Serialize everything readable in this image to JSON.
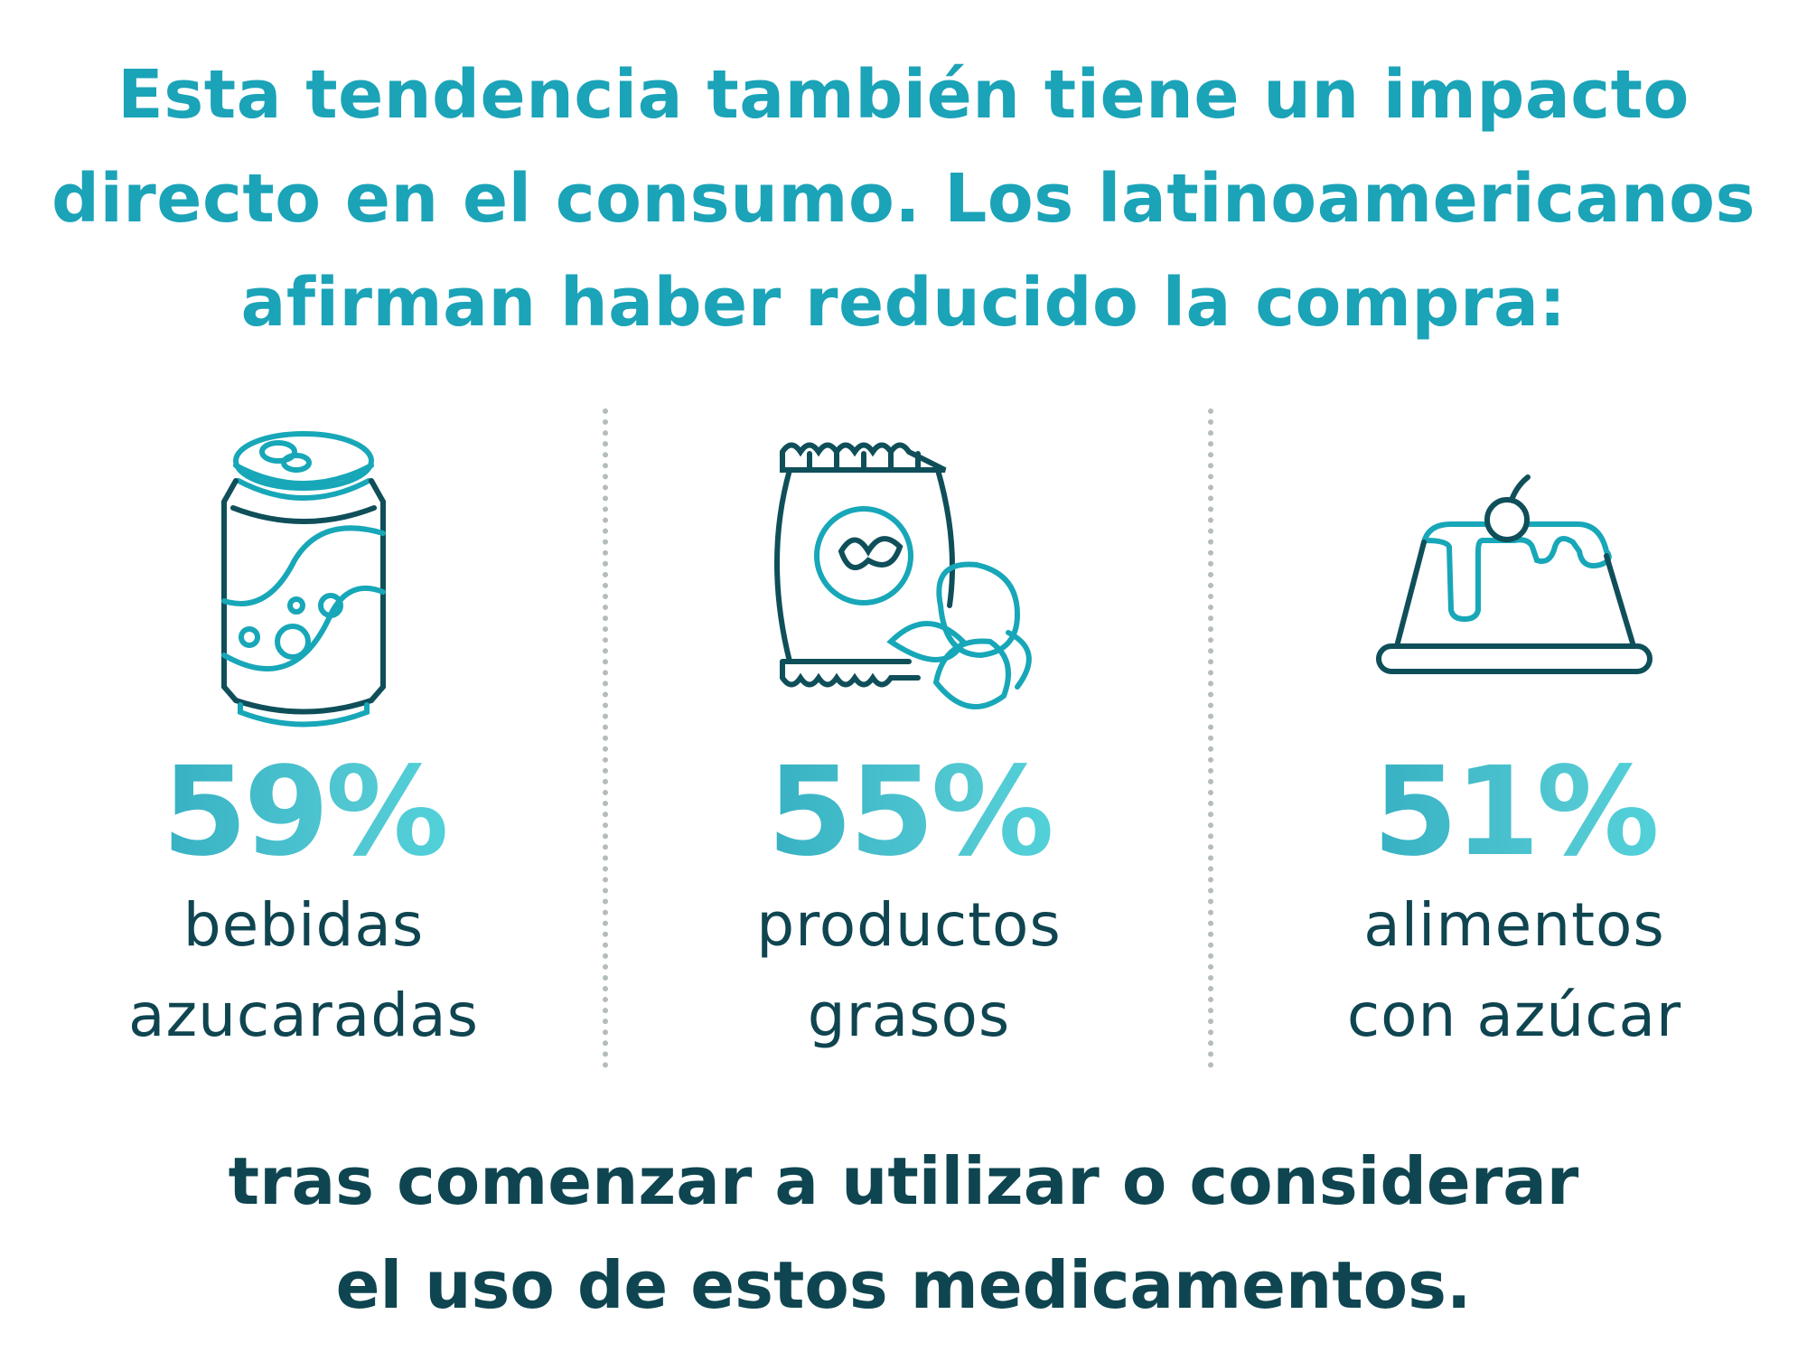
{
  "title": {
    "lines": [
      "Esta tendencia también tiene un impacto",
      "directo en el consumo. Los latinoamericanos",
      "afirman haber reducido la compra:"
    ]
  },
  "stats": [
    {
      "value": "59%",
      "label_lines": [
        "bebidas",
        "azucaradas"
      ],
      "icon": "soda-can-icon"
    },
    {
      "value": "55%",
      "label_lines": [
        "productos",
        "grasos"
      ],
      "icon": "chips-bag-icon"
    },
    {
      "value": "51%",
      "label_lines": [
        "alimentos",
        "con azúcar"
      ],
      "icon": "pudding-cake-icon"
    }
  ],
  "footer": {
    "lines": [
      "tras comenzar a utilizar o considerar",
      "el uso de estos medicamentos."
    ]
  },
  "colors": {
    "accent": "#1ba3b8",
    "dark": "#0e4550",
    "gradient_end": "#4fe0e6"
  }
}
